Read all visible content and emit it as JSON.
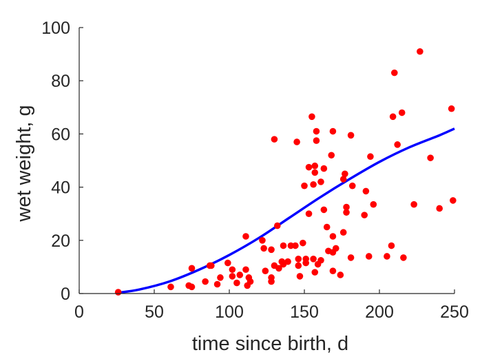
{
  "chart_data": {
    "type": "scatter",
    "title": "",
    "xlabel": "time since birth, d",
    "ylabel": "wet weight, g",
    "xlim": [
      0,
      250
    ],
    "ylim": [
      0,
      100
    ],
    "xticks": [
      0,
      50,
      100,
      150,
      200,
      250
    ],
    "yticks": [
      0,
      20,
      40,
      60,
      80,
      100
    ],
    "grid": false,
    "colors": {
      "points": "#ff0000",
      "curve": "#0000ff",
      "axis": "#262626"
    },
    "points": [
      [
        26,
        0.5
      ],
      [
        61,
        2.5
      ],
      [
        73,
        3.0
      ],
      [
        75,
        2.5
      ],
      [
        75,
        9.5
      ],
      [
        84,
        4.5
      ],
      [
        87,
        10.5
      ],
      [
        88,
        10.5
      ],
      [
        92,
        3.5
      ],
      [
        94,
        6.0
      ],
      [
        99,
        11.5
      ],
      [
        102,
        9.0
      ],
      [
        102,
        6.5
      ],
      [
        105,
        4.0
      ],
      [
        107,
        7.0
      ],
      [
        111,
        21.5
      ],
      [
        111,
        9.0
      ],
      [
        112,
        3.0
      ],
      [
        113,
        6.0
      ],
      [
        114,
        4.5
      ],
      [
        122,
        20.0
      ],
      [
        123,
        17.0
      ],
      [
        124,
        8.5
      ],
      [
        128,
        16.5
      ],
      [
        128,
        6.0
      ],
      [
        128,
        4.5
      ],
      [
        130,
        58.0
      ],
      [
        130,
        10.5
      ],
      [
        132,
        25.5
      ],
      [
        133,
        9.5
      ],
      [
        135,
        12.0
      ],
      [
        136,
        18.0
      ],
      [
        136,
        11.0
      ],
      [
        139,
        12.0
      ],
      [
        141,
        18.0
      ],
      [
        144,
        18.0
      ],
      [
        145,
        57.0
      ],
      [
        146,
        10.5
      ],
      [
        146,
        13.0
      ],
      [
        147,
        6.5
      ],
      [
        149,
        19.0
      ],
      [
        150,
        40.5
      ],
      [
        151,
        13.0
      ],
      [
        151,
        11.5
      ],
      [
        153,
        47.5
      ],
      [
        153,
        30.0
      ],
      [
        155,
        66.5
      ],
      [
        156,
        41.0
      ],
      [
        156,
        13.0
      ],
      [
        157,
        8.0
      ],
      [
        157,
        48.0
      ],
      [
        157,
        45.5
      ],
      [
        158,
        57.5
      ],
      [
        158,
        61.0
      ],
      [
        159,
        11.0
      ],
      [
        161,
        42.0
      ],
      [
        161,
        12.5
      ],
      [
        163,
        47.0
      ],
      [
        163,
        31.5
      ],
      [
        165,
        25.0
      ],
      [
        166,
        16.0
      ],
      [
        168,
        52.0
      ],
      [
        169,
        61.0
      ],
      [
        169,
        21.5
      ],
      [
        169,
        15.5
      ],
      [
        169,
        8.5
      ],
      [
        171,
        17.0
      ],
      [
        174,
        7.0
      ],
      [
        176,
        23.0
      ],
      [
        176,
        43.0
      ],
      [
        177,
        45.0
      ],
      [
        178,
        32.5
      ],
      [
        178,
        30.5
      ],
      [
        181,
        13.5
      ],
      [
        181,
        59.5
      ],
      [
        182,
        40.5
      ],
      [
        190,
        29.5
      ],
      [
        191,
        38.5
      ],
      [
        193,
        14.0
      ],
      [
        194,
        51.5
      ],
      [
        196,
        33.5
      ],
      [
        205,
        14.0
      ],
      [
        208,
        18.0
      ],
      [
        209,
        66.5
      ],
      [
        210,
        83.0
      ],
      [
        212,
        56.0
      ],
      [
        215,
        68.0
      ],
      [
        216,
        13.5
      ],
      [
        223,
        33.5
      ],
      [
        227,
        91.0
      ],
      [
        234,
        51.0
      ],
      [
        240,
        32.0
      ],
      [
        248,
        69.5
      ],
      [
        249,
        35.0
      ]
    ],
    "curve": [
      [
        26,
        0.3
      ],
      [
        40,
        1.5
      ],
      [
        60,
        4.5
      ],
      [
        80,
        9.0
      ],
      [
        100,
        14.5
      ],
      [
        120,
        21.0
      ],
      [
        140,
        28.5
      ],
      [
        160,
        36.0
      ],
      [
        180,
        43.0
      ],
      [
        200,
        49.5
      ],
      [
        220,
        55.0
      ],
      [
        240,
        59.5
      ],
      [
        250,
        62.0
      ]
    ]
  }
}
